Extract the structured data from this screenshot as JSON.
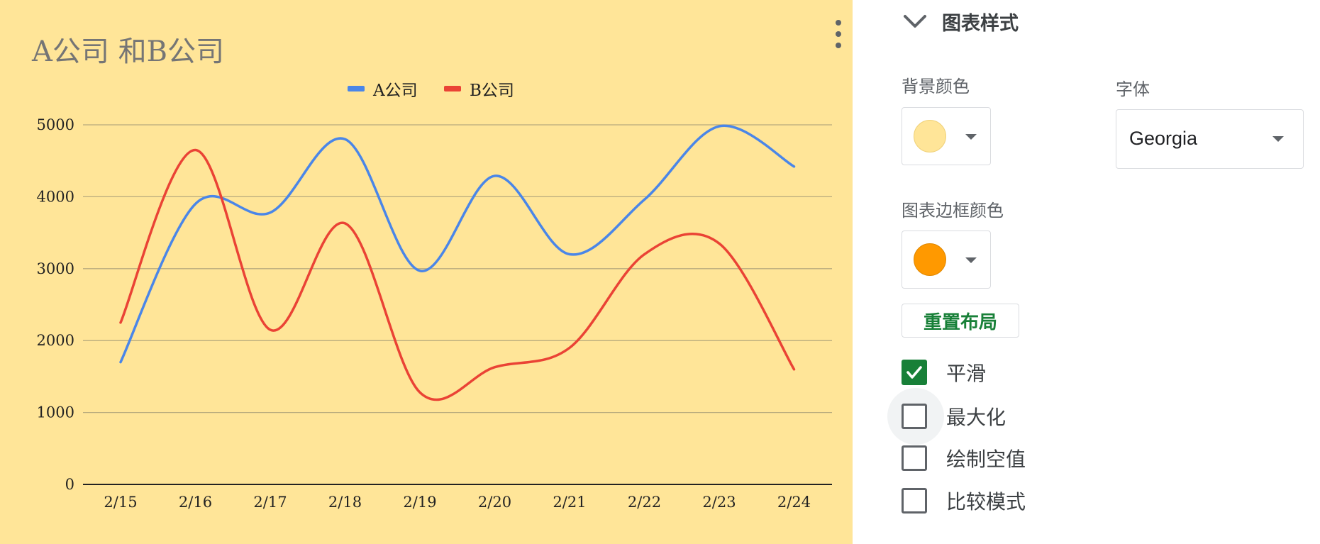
{
  "chart": {
    "title": "A公司 和B公司",
    "legend": [
      {
        "label": "A公司",
        "color": "#4a86e8"
      },
      {
        "label": "B公司",
        "color": "#ea4335"
      }
    ],
    "more_icon": "more-vert-icon"
  },
  "chart_data": {
    "type": "line",
    "title": "A公司 和B公司",
    "categories": [
      "2/15",
      "2/16",
      "2/17",
      "2/18",
      "2/19",
      "2/20",
      "2/21",
      "2/22",
      "2/23",
      "2/24"
    ],
    "series": [
      {
        "name": "A公司",
        "color": "#4a86e8",
        "values": [
          1700,
          3900,
          3780,
          4800,
          2970,
          4290,
          3200,
          3960,
          4980,
          4420
        ]
      },
      {
        "name": "B公司",
        "color": "#ea4335",
        "values": [
          2250,
          4650,
          2150,
          3630,
          1280,
          1630,
          1900,
          3200,
          3350,
          1600
        ]
      }
    ],
    "yticks": [
      0,
      1000,
      2000,
      3000,
      4000,
      5000
    ],
    "ylim": [
      0,
      5000
    ],
    "grid": true,
    "smooth": true,
    "legend_position": "top",
    "background_color": "#ffe598",
    "xlabel": "",
    "ylabel": ""
  },
  "panel": {
    "section_title": "图表样式",
    "section_icon": "chevron-down-icon",
    "background_color_label": "背景颜色",
    "background_color_value": "#ffe598",
    "font_label": "字体",
    "font_value": "Georgia",
    "border_color_label": "图表边框颜色",
    "border_color_value": "#ff9900",
    "reset_label": "重置布局",
    "checkboxes": [
      {
        "label": "平滑",
        "checked": true
      },
      {
        "label": "最大化",
        "checked": false
      },
      {
        "label": "绘制空值",
        "checked": false
      },
      {
        "label": "比较模式",
        "checked": false
      }
    ]
  }
}
